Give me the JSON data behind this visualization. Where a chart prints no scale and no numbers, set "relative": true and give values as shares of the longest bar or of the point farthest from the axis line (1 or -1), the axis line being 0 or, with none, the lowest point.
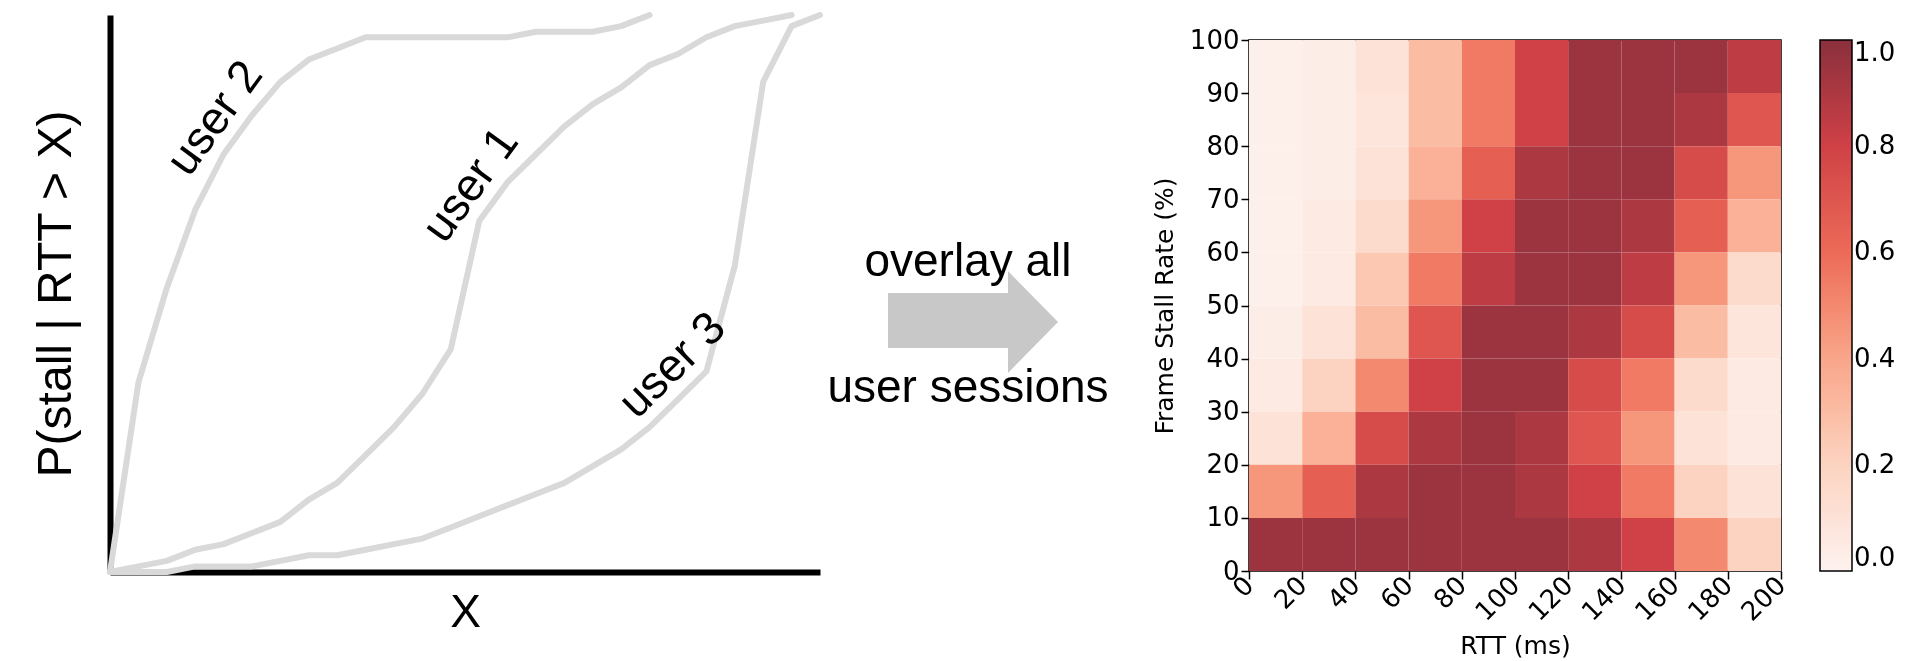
{
  "chart_data": [
    {
      "type": "line",
      "relative": true,
      "xlabel": "X",
      "ylabel": "P(stall | RTT > X)",
      "categories": [
        null,
        null,
        null,
        null,
        null,
        null,
        null,
        null,
        null,
        null,
        null,
        null,
        null,
        null,
        null,
        null,
        null,
        null,
        null,
        null,
        null,
        null,
        null,
        null,
        null,
        null
      ],
      "series": [
        {
          "name": "user 1",
          "color": "#d9d9d9",
          "values": [
            0,
            0.01,
            0.02,
            0.04,
            0.05,
            0.07,
            0.09,
            0.13,
            0.16,
            0.21,
            0.26,
            0.32,
            0.4,
            0.63,
            0.7,
            0.75,
            0.8,
            0.84,
            0.87,
            0.91,
            0.93,
            0.96,
            0.98,
            0.99,
            1.0,
            null
          ]
        },
        {
          "name": "user 2",
          "color": "#d9d9d9",
          "values": [
            0,
            0.34,
            0.51,
            0.65,
            0.75,
            0.82,
            0.88,
            0.92,
            0.94,
            0.96,
            0.96,
            0.96,
            0.96,
            0.96,
            0.96,
            0.97,
            0.97,
            0.97,
            0.98,
            1.0,
            null,
            null,
            null,
            null,
            null,
            null
          ]
        },
        {
          "name": "user 3",
          "color": "#d9d9d9",
          "values": [
            0,
            0,
            0,
            0.01,
            0.01,
            0.01,
            0.02,
            0.03,
            0.03,
            0.04,
            0.05,
            0.06,
            0.08,
            0.1,
            0.12,
            0.14,
            0.16,
            0.19,
            0.22,
            0.26,
            0.31,
            0.36,
            0.55,
            0.88,
            0.98,
            1.0
          ]
        }
      ],
      "annotations": [
        "overlay all",
        "user sessions"
      ]
    },
    {
      "type": "heatmap",
      "xlabel": "RTT (ms)",
      "ylabel": "Frame Stall Rate (%)",
      "xlim": [
        0,
        200
      ],
      "xticks": [
        0,
        20,
        40,
        60,
        80,
        100,
        120,
        140,
        160,
        180,
        200
      ],
      "ylim": [
        0,
        100
      ],
      "yticks": [
        0,
        10,
        20,
        30,
        40,
        50,
        60,
        70,
        80,
        90,
        100
      ],
      "clim": [
        0,
        1
      ],
      "cticks": [
        {
          "value": 0,
          "label": "0.0"
        },
        {
          "value": 0.2,
          "label": "0.2"
        },
        {
          "value": 0.4,
          "label": "0.4"
        },
        {
          "value": 0.6,
          "label": "0.6"
        },
        {
          "value": 0.8,
          "label": "0.8"
        },
        {
          "value": 1,
          "label": "1.0"
        }
      ],
      "cells": [
        [
          0.02,
          0.03,
          0.1,
          0.3,
          0.55,
          0.8,
          0.95,
          0.95,
          0.95,
          0.85
        ],
        [
          0.02,
          0.03,
          0.08,
          0.3,
          0.55,
          0.8,
          0.95,
          0.95,
          0.9,
          0.7
        ],
        [
          0.02,
          0.03,
          0.1,
          0.35,
          0.65,
          0.9,
          0.95,
          0.95,
          0.75,
          0.45
        ],
        [
          0.02,
          0.05,
          0.15,
          0.45,
          0.8,
          0.95,
          0.95,
          0.9,
          0.65,
          0.35
        ],
        [
          0.02,
          0.05,
          0.25,
          0.55,
          0.85,
          0.95,
          0.95,
          0.85,
          0.45,
          0.15
        ],
        [
          0.03,
          0.1,
          0.3,
          0.7,
          0.95,
          0.95,
          0.9,
          0.75,
          0.3,
          0.08
        ],
        [
          0.05,
          0.2,
          0.5,
          0.8,
          0.95,
          0.95,
          0.75,
          0.55,
          0.15,
          0.05
        ],
        [
          0.1,
          0.35,
          0.75,
          0.9,
          0.95,
          0.9,
          0.7,
          0.45,
          0.1,
          0.05
        ],
        [
          0.45,
          0.65,
          0.9,
          0.95,
          0.95,
          0.9,
          0.8,
          0.55,
          0.2,
          0.1
        ],
        [
          0.95,
          0.95,
          0.95,
          0.95,
          0.95,
          0.95,
          0.9,
          0.8,
          0.5,
          0.2
        ]
      ]
    }
  ]
}
